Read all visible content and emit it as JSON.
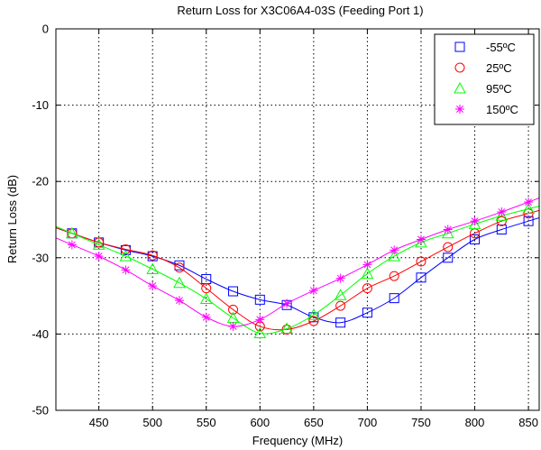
{
  "chart_data": {
    "type": "line",
    "title": "Return Loss for X3C06A4-03S (Feeding Port 1)",
    "xlabel": "Frequency (MHz)",
    "ylabel": "Return Loss (dB)",
    "xlim": [
      410,
      860
    ],
    "ylim": [
      -50,
      0
    ],
    "xticks": [
      450,
      500,
      550,
      600,
      650,
      700,
      750,
      800,
      850
    ],
    "yticks": [
      0,
      -10,
      -20,
      -30,
      -40,
      -50
    ],
    "grid": true,
    "legend_position": "top-right",
    "x": [
      425,
      450,
      475,
      500,
      525,
      550,
      575,
      600,
      625,
      650,
      675,
      700,
      725,
      750,
      775,
      800,
      825,
      850
    ],
    "series": [
      {
        "name": "-55ºC",
        "marker": "square",
        "color": "#0000ff",
        "values": [
          -26.8,
          -28.0,
          -29.0,
          -29.8,
          -31.0,
          -32.8,
          -34.4,
          -35.5,
          -36.2,
          -37.8,
          -38.5,
          -37.2,
          -35.3,
          -32.6,
          -30.0,
          -27.6,
          -26.3,
          -25.2
        ]
      },
      {
        "name": "25ºC",
        "marker": "circle",
        "color": "#ff0000",
        "values": [
          -26.8,
          -28.0,
          -28.9,
          -29.7,
          -31.3,
          -34.0,
          -36.8,
          -39.0,
          -39.4,
          -38.3,
          -36.3,
          -34.0,
          -32.4,
          -30.5,
          -28.6,
          -26.8,
          -25.2,
          -24.2
        ]
      },
      {
        "name": "95ºC",
        "marker": "triangle",
        "color": "#00ff00",
        "values": [
          -26.8,
          -28.3,
          -29.8,
          -31.5,
          -33.3,
          -35.4,
          -37.9,
          -39.9,
          -39.3,
          -37.5,
          -34.9,
          -32.1,
          -29.8,
          -28.0,
          -26.8,
          -25.6,
          -24.5,
          -23.6
        ]
      },
      {
        "name": "150ºC",
        "marker": "star",
        "color": "#ff00ff",
        "values": [
          -28.3,
          -29.8,
          -31.6,
          -33.7,
          -35.6,
          -37.8,
          -39.0,
          -38.1,
          -36.0,
          -34.3,
          -32.7,
          -30.9,
          -29.0,
          -27.6,
          -26.3,
          -25.2,
          -24.0,
          -22.7
        ]
      }
    ]
  }
}
